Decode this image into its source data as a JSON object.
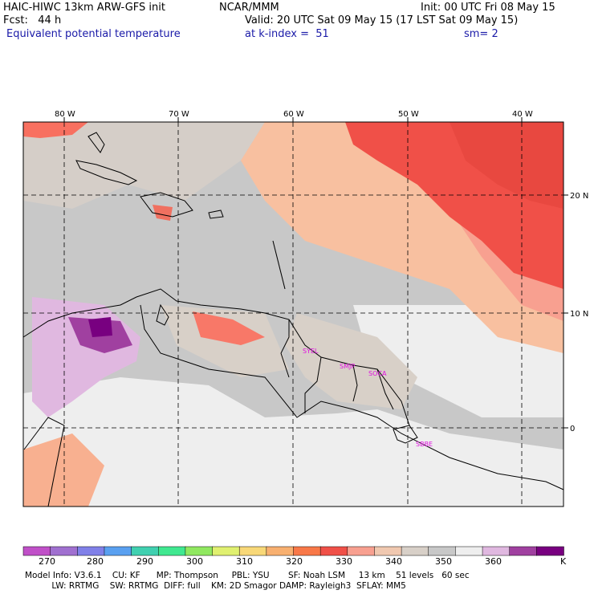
{
  "header": {
    "model_title": "HAIC-HIWC 13km ARW-GFS init",
    "org": "NCAR/MMM",
    "init": "Init: 00 UTC Fri 08 May 15",
    "fcst": "Fcst:   44 h",
    "valid": "Valid: 20 UTC Sat 09 May 15 (17 LST Sat 09 May 15)",
    "field": "Equivalent potential temperature",
    "level": "at k-index =  51",
    "smooth": "sm= 2"
  },
  "axes": {
    "lon_labels": [
      "80 W",
      "70 W",
      "60 W",
      "50 W",
      "40 W"
    ],
    "lat_labels": [
      "20 N",
      "10 N",
      "0"
    ]
  },
  "stations": [
    "SYEL",
    "SMJP",
    "SOCA",
    "SBBE"
  ],
  "colorbar": {
    "tick_labels": [
      "270",
      "280",
      "290",
      "300",
      "310",
      "320",
      "330",
      "340",
      "350",
      "360"
    ],
    "unit": "K",
    "colors": [
      "#c050c8",
      "#a070d0",
      "#8080e8",
      "#5aa0f0",
      "#40d0b0",
      "#40e890",
      "#90e860",
      "#e0f070",
      "#f8d878",
      "#f8b070",
      "#f87848",
      "#f05048",
      "#f8a090",
      "#f0c8b0",
      "#d8d0c8",
      "#c8c8c8",
      "#eeeeee",
      "#e0b8e0",
      "#a040a0",
      "#780080"
    ]
  },
  "footer": {
    "line1": "Model Info: V3.6.1    CU: KF      MP: Thompson     PBL: YSU       SF: Noah LSM     13 km    51 levels   60 sec",
    "line2": "          LW: RRTMG    SW: RRTMG  DIFF: full    KM: 2D Smagor DAMP: Rayleigh3  SFLAY: MM5"
  }
}
